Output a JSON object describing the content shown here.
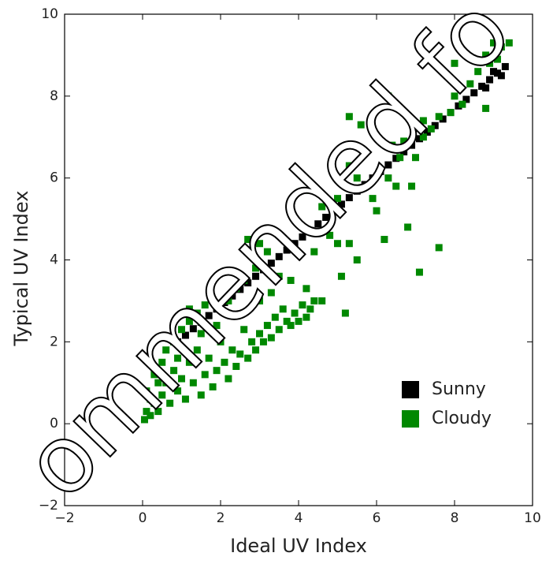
{
  "chart_data": {
    "type": "scatter",
    "xlabel": "Ideal UV Index",
    "ylabel": "Typical UV Index",
    "watermark": "ommended fo",
    "xlim": [
      -2,
      10
    ],
    "ylim": [
      -2,
      10
    ],
    "xticks": [
      {
        "value": -2,
        "label": "−2"
      },
      0,
      2,
      4,
      6,
      8,
      10
    ],
    "yticks": [
      {
        "value": -2,
        "label": "−2"
      },
      0,
      2,
      4,
      6,
      8,
      10
    ],
    "grid": false,
    "legend": "lower right",
    "series": [
      {
        "name": "Sunny",
        "color": "#000000",
        "x": [
          0.9,
          1.1,
          1.3,
          1.5,
          1.7,
          1.9,
          2.1,
          2.3,
          2.5,
          2.7,
          2.9,
          3.1,
          3.3,
          3.5,
          3.7,
          3.9,
          4.1,
          4.3,
          4.5,
          4.7,
          4.9,
          5.1,
          5.3,
          5.5,
          5.7,
          5.9,
          6.1,
          6.3,
          6.5,
          6.7,
          6.9,
          7.1,
          7.3,
          7.5,
          7.7,
          7.9,
          8.1,
          8.3,
          8.5,
          8.7,
          8.9,
          9.1,
          9.3,
          9.0,
          9.2,
          8.8
        ],
        "values": [
          2.0,
          2.16,
          2.32,
          2.48,
          2.64,
          2.8,
          2.96,
          3.12,
          3.28,
          3.44,
          3.6,
          3.76,
          3.92,
          4.08,
          4.24,
          4.4,
          4.56,
          4.72,
          4.88,
          5.04,
          5.2,
          5.36,
          5.52,
          5.68,
          5.84,
          6.0,
          6.16,
          6.32,
          6.48,
          6.64,
          6.8,
          6.96,
          7.12,
          7.28,
          7.44,
          7.6,
          7.76,
          7.92,
          8.08,
          8.24,
          8.4,
          8.56,
          8.72,
          8.6,
          8.5,
          8.2
        ]
      },
      {
        "name": "Cloudy",
        "color": "#008800",
        "x": [
          0.05,
          0.1,
          0.2,
          0.3,
          0.1,
          0.4,
          0.5,
          0.6,
          0.3,
          0.7,
          0.8,
          0.5,
          0.9,
          1.0,
          0.6,
          1.1,
          1.2,
          0.8,
          1.3,
          1.4,
          1.5,
          1.0,
          1.6,
          1.2,
          1.7,
          1.8,
          1.4,
          1.9,
          2.0,
          1.2,
          2.1,
          2.2,
          2.3,
          2.4,
          1.6,
          2.5,
          2.6,
          2.7,
          2.8,
          2.9,
          3.0,
          3.1,
          2.6,
          3.2,
          3.3,
          3.4,
          3.5,
          3.6,
          3.7,
          3.8,
          3.9,
          4.0,
          4.1,
          4.2,
          4.4,
          4.3,
          3.0,
          2.9,
          2.7,
          3.0,
          3.2,
          3.5,
          3.3,
          3.8,
          4.2,
          4.6,
          4.4,
          4.8,
          5.0,
          5.1,
          5.3,
          5.5,
          5.2,
          4.3,
          4.6,
          5.0,
          5.5,
          5.3,
          5.9,
          6.0,
          6.2,
          6.3,
          6.5,
          6.8,
          6.9,
          7.1,
          7.6,
          7.0,
          7.2,
          6.6,
          6.4,
          6.3,
          5.6,
          5.3,
          6.0,
          7.4,
          7.6,
          7.9,
          8.0,
          8.2,
          8.4,
          8.8,
          8.6,
          8.8,
          9.0,
          9.2,
          9.4,
          8.9,
          9.1,
          8.3,
          8.0,
          7.2,
          6.7,
          2.2,
          2.4,
          1.9,
          1.5,
          0.9,
          0.4,
          0.2
        ],
        "values": [
          0.1,
          0.3,
          0.2,
          0.5,
          0.8,
          0.3,
          0.7,
          1.0,
          1.2,
          0.5,
          1.3,
          1.5,
          0.8,
          1.1,
          1.8,
          0.6,
          1.5,
          2.0,
          1.0,
          1.8,
          0.7,
          2.3,
          1.2,
          2.5,
          1.6,
          0.9,
          2.7,
          1.3,
          2.0,
          2.8,
          1.5,
          1.1,
          1.8,
          1.4,
          2.9,
          1.7,
          2.3,
          1.6,
          2.0,
          1.8,
          2.2,
          2.0,
          3.5,
          2.4,
          2.1,
          2.6,
          2.3,
          2.8,
          2.5,
          2.4,
          2.7,
          2.5,
          2.9,
          2.6,
          3.0,
          2.8,
          3.0,
          3.8,
          4.5,
          4.4,
          4.2,
          3.6,
          3.2,
          3.5,
          3.3,
          3.0,
          4.2,
          4.6,
          4.4,
          3.6,
          4.4,
          4.0,
          2.7,
          5.7,
          5.3,
          5.5,
          6.0,
          6.3,
          5.5,
          5.2,
          4.5,
          6.0,
          5.8,
          4.8,
          5.8,
          3.7,
          4.3,
          6.5,
          7.0,
          6.5,
          6.8,
          8.0,
          7.3,
          7.5,
          7.0,
          7.2,
          7.5,
          7.6,
          8.0,
          7.8,
          8.3,
          7.7,
          8.6,
          9.0,
          9.3,
          9.2,
          9.3,
          8.8,
          8.9,
          9.0,
          8.8,
          7.4,
          6.9,
          3.0,
          3.3,
          2.4,
          2.2,
          1.6,
          1.0,
          0.6
        ]
      }
    ]
  }
}
